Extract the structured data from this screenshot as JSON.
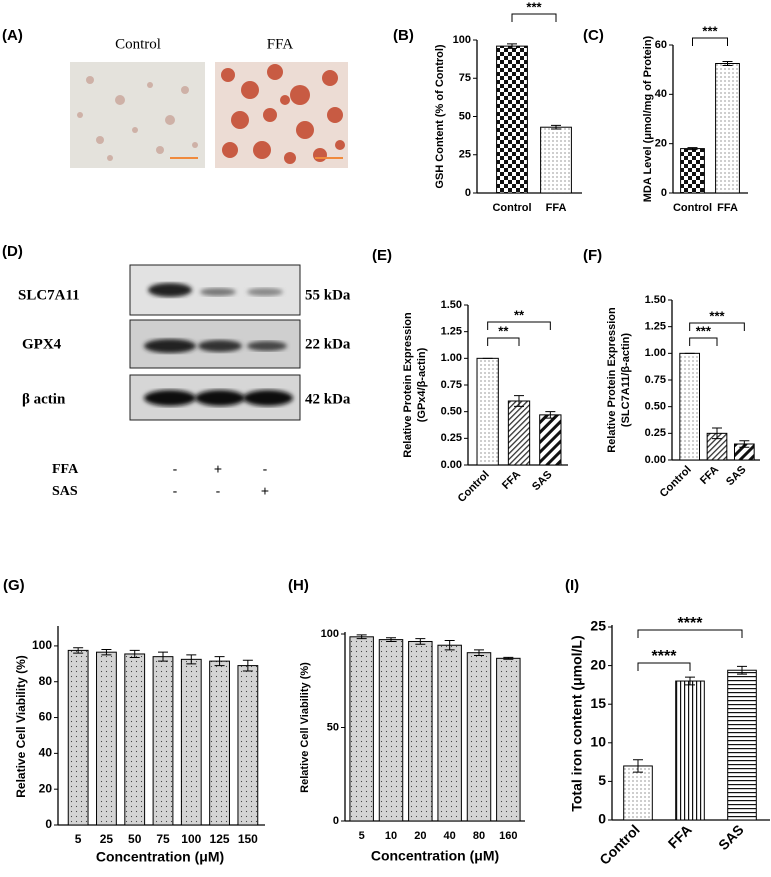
{
  "images": {
    "panel": "(A)",
    "labels": [
      "Control",
      "FFA"
    ]
  },
  "blot": {
    "panel": "(D)",
    "proteins": [
      "SLC7A11",
      "GPX4",
      "β actin"
    ],
    "sizes": [
      "55 kDa",
      "22 kDa",
      "42 kDa"
    ],
    "treatments": [
      {
        "name": "FFA",
        "signs": [
          "-",
          "+",
          "-"
        ]
      },
      {
        "name": "SAS",
        "signs": [
          "-",
          "-",
          "+"
        ]
      }
    ]
  },
  "chart_data": [
    {
      "type": "bar",
      "panel": "(B)",
      "ylabel": "GSH Content (% of Control)",
      "categories": [
        "Control",
        "FFA"
      ],
      "values": [
        96,
        43
      ],
      "errors": [
        1.5,
        1.2
      ],
      "fills": [
        "checker",
        "dots"
      ],
      "ylim": [
        0,
        100
      ],
      "yticks": [
        0,
        25,
        50,
        75,
        100
      ],
      "significance": [
        {
          "label": "***",
          "between": [
            "Control",
            "FFA"
          ]
        }
      ]
    },
    {
      "type": "bar",
      "panel": "(C)",
      "ylabel": "MDA Level (μmol/mg of Protein)",
      "categories": [
        "Control",
        "FFA"
      ],
      "values": [
        18,
        52.5
      ],
      "errors": [
        0.4,
        0.8
      ],
      "fills": [
        "checker",
        "dots"
      ],
      "ylim": [
        0,
        60
      ],
      "yticks": [
        0,
        20,
        40,
        60
      ],
      "significance": [
        {
          "label": "***",
          "between": [
            "Control",
            "FFA"
          ]
        }
      ]
    },
    {
      "type": "bar",
      "panel": "(E)",
      "ylabel": [
        "Relative Protein Expression",
        "(GPx4/β-actin)"
      ],
      "categories": [
        "Control",
        "FFA",
        "SAS"
      ],
      "values": [
        1.0,
        0.6,
        0.47
      ],
      "errors": [
        0,
        0.05,
        0.03
      ],
      "fills": [
        "dots",
        "hatch",
        "bighatch"
      ],
      "ylim": [
        0,
        1.5
      ],
      "yticks": [
        {
          "value": 0,
          "label": "0.00"
        },
        0.25,
        {
          "value": 0.5,
          "label": "0.50"
        },
        0.75,
        {
          "value": 1,
          "label": "1.00"
        },
        1.25,
        {
          "value": 1.5,
          "label": "1.50"
        }
      ],
      "significance": [
        {
          "label": "**",
          "between": [
            "Control",
            "FFA"
          ]
        },
        {
          "label": "**",
          "between": [
            "Control",
            "SAS"
          ]
        }
      ]
    },
    {
      "type": "bar",
      "panel": "(F)",
      "ylabel": [
        "Relative Protein Expression",
        "(SLC7A11/β-actin)"
      ],
      "categories": [
        "Control",
        "FFA",
        "SAS"
      ],
      "values": [
        1.0,
        0.25,
        0.15
      ],
      "errors": [
        0,
        0.05,
        0.03
      ],
      "fills": [
        "dots",
        "hatch",
        "bighatch"
      ],
      "ylim": [
        0,
        1.5
      ],
      "yticks": [
        {
          "value": 0,
          "label": "0.00"
        },
        0.25,
        {
          "value": 0.5,
          "label": "0.50"
        },
        0.75,
        {
          "value": 1,
          "label": "1.00"
        },
        1.25,
        {
          "value": 1.5,
          "label": "1.50"
        }
      ],
      "significance": [
        {
          "label": "***",
          "between": [
            "Control",
            "FFA"
          ]
        },
        {
          "label": "***",
          "between": [
            "Control",
            "SAS"
          ]
        }
      ]
    },
    {
      "type": "bar",
      "panel": "(G)",
      "ylabel": "Relative Cell Viability (%)",
      "xlabel": "Concentration (μM)",
      "categories": [
        "5",
        "25",
        "50",
        "75",
        "100",
        "125",
        "150"
      ],
      "values": [
        97.5,
        96.5,
        95.5,
        94,
        92.5,
        91.5,
        89
      ],
      "errors": [
        1.5,
        1.5,
        2,
        2.5,
        2.5,
        2.5,
        3
      ],
      "fills": [
        "graydots",
        "graydots",
        "graydots",
        "graydots",
        "graydots",
        "graydots",
        "graydots"
      ],
      "ylim": [
        0,
        110
      ],
      "yticks": [
        0,
        20,
        40,
        60,
        80,
        100
      ],
      "significance": []
    },
    {
      "type": "bar",
      "panel": "(H)",
      "ylabel": "Relative Cell Viability (%)",
      "xlabel": "Concentration (μM)",
      "categories": [
        "5",
        "10",
        "20",
        "40",
        "80",
        "160"
      ],
      "values": [
        98.5,
        97,
        96,
        94,
        90,
        87
      ],
      "errors": [
        1,
        1,
        1.5,
        2.5,
        1.5,
        0.5
      ],
      "fills": [
        "graydots",
        "graydots",
        "graydots",
        "graydots",
        "graydots",
        "graydots"
      ],
      "ylim": [
        0,
        100
      ],
      "yticks": [
        0,
        50,
        100
      ],
      "significance": []
    },
    {
      "type": "bar",
      "panel": "(I)",
      "ylabel": "Total iron content (μmol/L)",
      "categories": [
        "Control",
        "FFA",
        "SAS"
      ],
      "values": [
        7,
        18,
        19.4
      ],
      "errors": [
        0.8,
        0.5,
        0.5
      ],
      "fills": [
        "dots",
        "vlines",
        "hlines"
      ],
      "ylim": [
        0,
        25
      ],
      "yticks": [
        0,
        5,
        10,
        15,
        20,
        25
      ],
      "significance": [
        {
          "label": "****",
          "between": [
            "Control",
            "FFA"
          ]
        },
        {
          "label": "****",
          "between": [
            "Control",
            "SAS"
          ]
        }
      ]
    }
  ]
}
